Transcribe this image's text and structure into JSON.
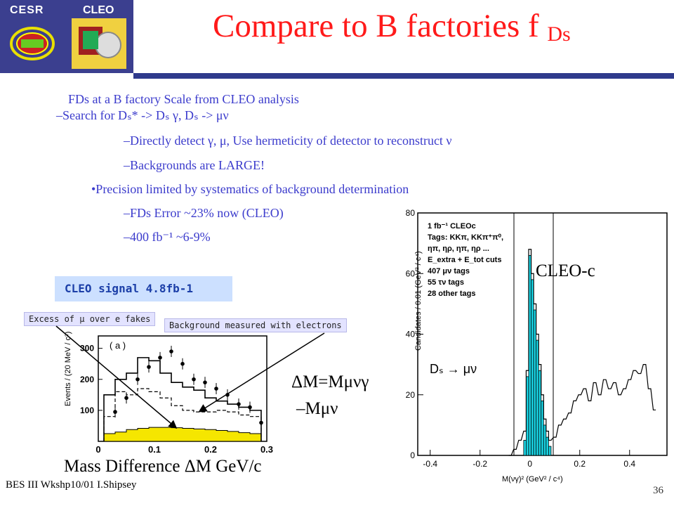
{
  "logos": {
    "left": "CESR",
    "right": "CLEO"
  },
  "title": {
    "main": "Compare to B factories f",
    "sub": "Ds"
  },
  "bullets": [
    {
      "text": "FDs at a B factory Scale from  CLEO analysis"
    },
    {
      "text": "–Search for Dₛ* -> Dₛ γ, Dₛ -> μν"
    },
    {
      "text": "–Directly detect γ, μ, Use hermeticity of detector to reconstruct ν"
    },
    {
      "text": "–Backgrounds are LARGE!"
    },
    {
      "text": "•Precision limited by systematics of background determination"
    },
    {
      "text": "–FDs Error ~23% now (CLEO)"
    },
    {
      "text": "–400 fb⁻¹ ~6-9%"
    }
  ],
  "signal_box": "CLEO signal 4.8fb-1",
  "callouts": {
    "excess": "Excess of μ over e fakes",
    "background": "Background measured with electrons"
  },
  "delta_m": {
    "line1": "ΔM=Mμνγ",
    "line2": "–Mμν"
  },
  "mass_label": "Mass Difference ΔM GeV/c",
  "cleo_c": "CLEO-c",
  "ds_label": "Dₛ → μν",
  "footer": {
    "left": "BES III Wkshp10/01 I.Shipsey",
    "page": "36"
  },
  "chart_data": [
    {
      "type": "bar",
      "subplot_label": "( a )",
      "xlabel": "",
      "ylabel": "Events / (20 MeV / c²)",
      "xlim": [
        0,
        0.3
      ],
      "ylim": [
        0,
        340
      ],
      "x_ticks": [
        "0",
        "0.1",
        "0.2",
        "0.3"
      ],
      "y_ticks": [
        "100",
        "200",
        "300"
      ],
      "series": [
        {
          "x": [
            0.02,
            0.04,
            0.06,
            0.08,
            0.1,
            0.12,
            0.14,
            0.16,
            0.18,
            0.2,
            0.22,
            0.24,
            0.26,
            0.28
          ],
          "values": [
            150,
            200,
            220,
            270,
            260,
            220,
            190,
            175,
            165,
            140,
            130,
            120,
            110,
            100
          ]
        },
        {
          "x": [
            0.02,
            0.04,
            0.06,
            0.08,
            0.1,
            0.12,
            0.14,
            0.16,
            0.18,
            0.2,
            0.22,
            0.24,
            0.26,
            0.28
          ],
          "values": [
            80,
            160,
            150,
            170,
            160,
            140,
            115,
            100,
            95,
            95,
            100,
            95,
            85,
            80
          ]
        },
        {
          "x": [
            0.02,
            0.04,
            0.06,
            0.08,
            0.1,
            0.12,
            0.14,
            0.16,
            0.18,
            0.2,
            0.22,
            0.24,
            0.26,
            0.28
          ],
          "values": [
            25,
            30,
            38,
            42,
            45,
            45,
            44,
            42,
            40,
            38,
            35,
            32,
            28,
            25
          ]
        }
      ],
      "points": {
        "x": [
          0.03,
          0.05,
          0.07,
          0.09,
          0.11,
          0.13,
          0.15,
          0.17,
          0.19,
          0.21,
          0.23,
          0.25,
          0.27,
          0.29
        ],
        "y": [
          95,
          140,
          200,
          240,
          270,
          290,
          250,
          200,
          190,
          170,
          150,
          120,
          110,
          60
        ]
      }
    },
    {
      "type": "bar",
      "xlabel": "M(νγ)² (GeV² / c⁴)",
      "ylabel": "Candidates / 0.01 (GeV² / c⁴)",
      "xlim": [
        -0.45,
        0.55
      ],
      "ylim": [
        0,
        80
      ],
      "x_ticks": [
        "-0.4",
        "-0.2",
        "0",
        "0.2",
        "0.4"
      ],
      "y_ticks": [
        "0",
        "20",
        "40",
        "60",
        "80"
      ],
      "legend_lines": [
        "1 fb⁻¹ CLEOc",
        "Tags: KKπ, KKπ⁺π⁰,",
        "ηπ, ηρ, ηπ, ηρ ...",
        "E_extra + E_tot cuts",
        "407 μν tags",
        "55 τν tags",
        "28 other tags"
      ],
      "series": [
        {
          "name": "signal",
          "x": [
            -0.02,
            -0.01,
            0.0,
            0.01,
            0.02,
            0.03,
            0.04,
            0.05,
            0.06,
            0.07,
            0.08
          ],
          "values": [
            5,
            26,
            66,
            58,
            48,
            38,
            28,
            18,
            10,
            6,
            3
          ]
        },
        {
          "name": "total",
          "x": [
            -0.08,
            -0.06,
            -0.04,
            -0.02,
            -0.01,
            0.0,
            0.01,
            0.02,
            0.03,
            0.04,
            0.05,
            0.06,
            0.07,
            0.08,
            0.1,
            0.12,
            0.14,
            0.16,
            0.18,
            0.2,
            0.22,
            0.24,
            0.26,
            0.28,
            0.3,
            0.32,
            0.34,
            0.36,
            0.38,
            0.4,
            0.42,
            0.44,
            0.46,
            0.48,
            0.5
          ],
          "values": [
            0,
            2,
            5,
            8,
            28,
            68,
            60,
            50,
            40,
            30,
            20,
            12,
            8,
            5,
            6,
            10,
            12,
            14,
            18,
            20,
            22,
            18,
            24,
            20,
            25,
            22,
            24,
            20,
            22,
            25,
            28,
            27,
            30,
            22,
            15
          ]
        }
      ]
    }
  ]
}
